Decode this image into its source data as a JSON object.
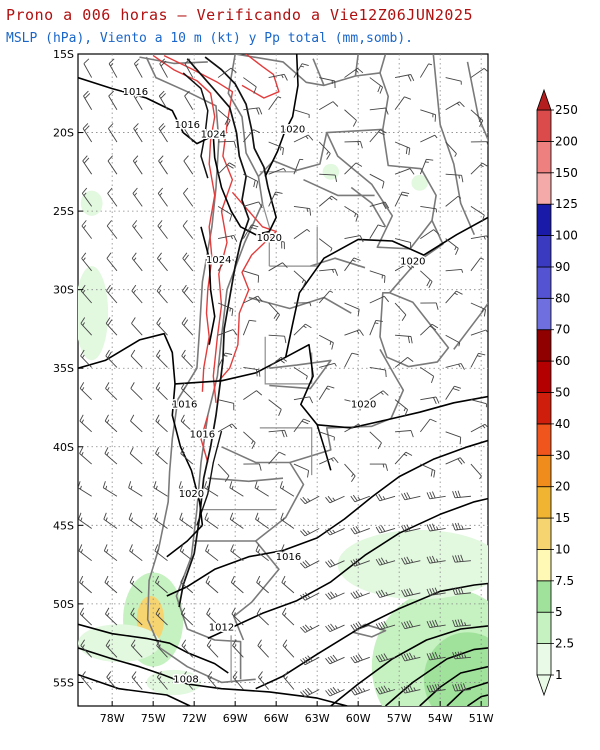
{
  "header": {
    "title": "Prono a 006 horas — Verificando a Vie12Z06JUN2025",
    "subtitle": "MSLP (hPa), Viento a 10 m (kt) y Pp total (mm,somb)."
  },
  "map": {
    "lat_labels": [
      "15S",
      "20S",
      "25S",
      "30S",
      "35S",
      "40S",
      "45S",
      "50S",
      "55S"
    ],
    "lon_labels": [
      "78W",
      "75W",
      "72W",
      "69W",
      "66W",
      "63W",
      "60W",
      "57W",
      "54W",
      "51W"
    ],
    "isobar_labels": [
      {
        "text": "1016",
        "lon": -76.3,
        "lat": -17.6
      },
      {
        "text": "1016",
        "lon": -72.5,
        "lat": -19.7
      },
      {
        "text": "1024",
        "lon": -70.6,
        "lat": -20.3
      },
      {
        "text": "1020",
        "lon": -64.8,
        "lat": -20.0
      },
      {
        "text": "1020",
        "lon": -66.5,
        "lat": -26.9
      },
      {
        "text": "1024",
        "lon": -70.2,
        "lat": -28.3
      },
      {
        "text": "1020",
        "lon": -56.0,
        "lat": -28.4
      },
      {
        "text": "1020",
        "lon": -59.6,
        "lat": -37.5
      },
      {
        "text": "1016",
        "lon": -72.7,
        "lat": -37.5
      },
      {
        "text": "1016",
        "lon": -71.4,
        "lat": -39.4
      },
      {
        "text": "1020",
        "lon": -72.2,
        "lat": -43.2
      },
      {
        "text": "1016",
        "lon": -65.1,
        "lat": -47.2
      },
      {
        "text": "1012",
        "lon": -70.0,
        "lat": -51.7
      },
      {
        "text": "1008",
        "lon": -72.6,
        "lat": -55.0
      }
    ]
  },
  "colorbar": {
    "labels": [
      "1",
      "2.5",
      "5",
      "7.5",
      "10",
      "15",
      "20",
      "30",
      "40",
      "50",
      "60",
      "70",
      "80",
      "90",
      "100",
      "125",
      "150",
      "200",
      "250"
    ],
    "colors": [
      "#e9fbe7",
      "#c6f1c1",
      "#a0e29b",
      "#fff9b5",
      "#f6d470",
      "#f0b432",
      "#f08c1c",
      "#f0551e",
      "#d01e0c",
      "#b40000",
      "#900000",
      "#6f6fe0",
      "#5454d2",
      "#3a3ac0",
      "#1a1aa8",
      "#f5aaaa",
      "#ee8080",
      "#dc4b4b",
      "#b41e1e"
    ]
  }
}
